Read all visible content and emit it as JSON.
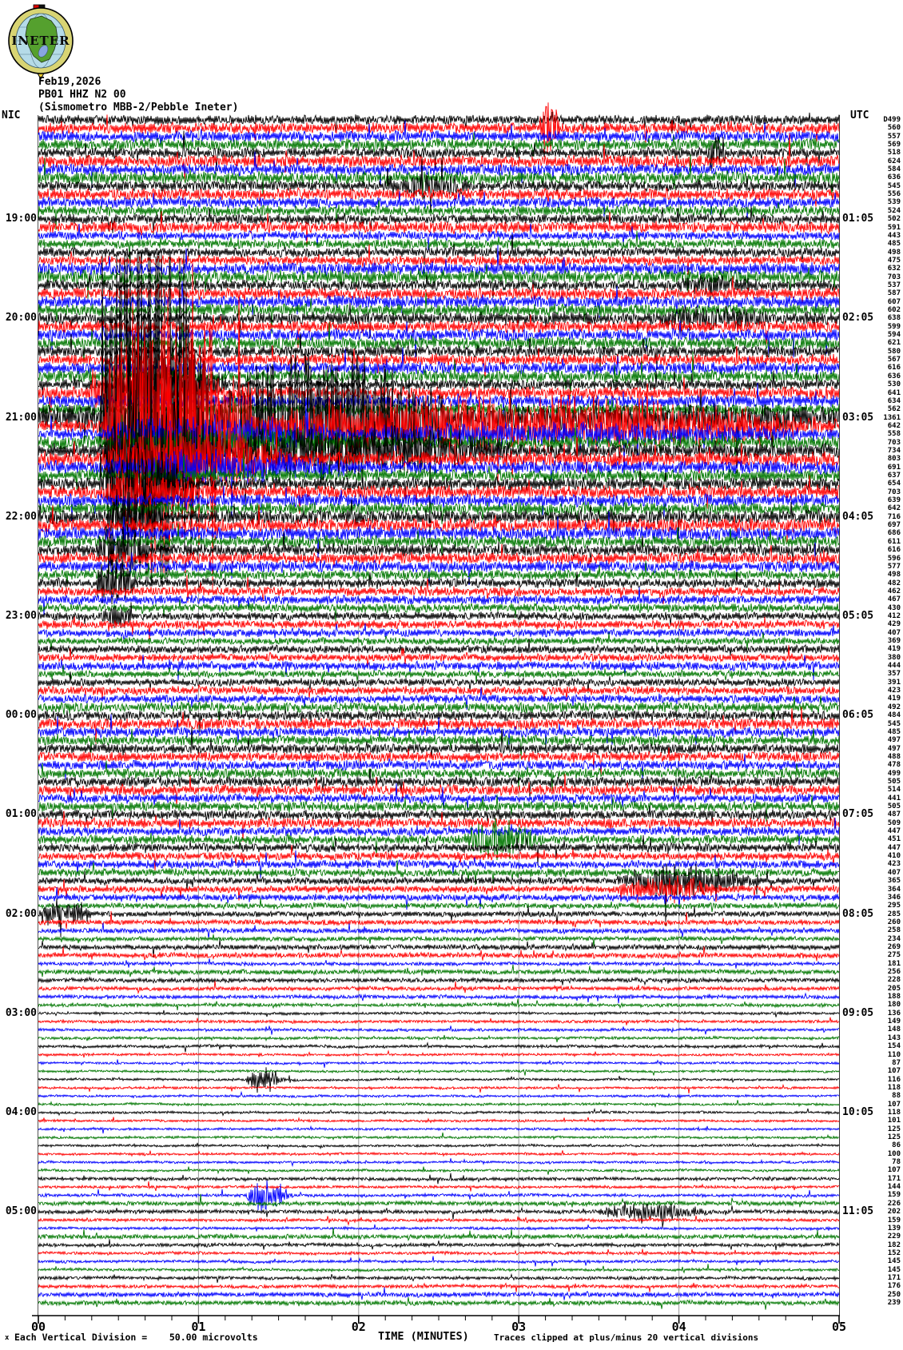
{
  "header": {
    "date": "Feb19,2026",
    "station": "PB01 HHZ N2 00",
    "instrument": "(Sismometro MBB-2/Pebble Ineter)",
    "left_timezone": "NIC",
    "right_timezone": "UTC",
    "logo_text": "INETER"
  },
  "left_time_labels": [
    {
      "label": "19:00",
      "row": 12
    },
    {
      "label": "20:00",
      "row": 24
    },
    {
      "label": "21:00",
      "row": 36
    },
    {
      "label": "22:00",
      "row": 48
    },
    {
      "label": "23:00",
      "row": 60
    },
    {
      "label": "00:00",
      "row": 72
    },
    {
      "label": "01:00",
      "row": 84
    },
    {
      "label": "02:00",
      "row": 96
    },
    {
      "label": "03:00",
      "row": 108
    },
    {
      "label": "04:00",
      "row": 120
    },
    {
      "label": "05:00",
      "row": 132
    }
  ],
  "right_time_labels": [
    {
      "label": "01:05",
      "row": 12
    },
    {
      "label": "02:05",
      "row": 24
    },
    {
      "label": "03:05",
      "row": 36
    },
    {
      "label": "04:05",
      "row": 48
    },
    {
      "label": "05:05",
      "row": 60
    },
    {
      "label": "06:05",
      "row": 72
    },
    {
      "label": "07:05",
      "row": 84
    },
    {
      "label": "08:05",
      "row": 96
    },
    {
      "label": "09:05",
      "row": 108
    },
    {
      "label": "10:05",
      "row": 120
    },
    {
      "label": "11:05",
      "row": 132
    }
  ],
  "x_axis": {
    "tick_labels": [
      "00",
      "01",
      "02",
      "03",
      "04",
      "05"
    ],
    "title": "TIME (MINUTES)"
  },
  "footer": {
    "scale_marker": "x",
    "scale_note": "Each Vertical Division =    50.00 microvolts",
    "clip_note": "Traces clipped at plus/minus 20 vertical divisions"
  },
  "colors": {
    "trace_cycle": [
      "#000000",
      "#ff0000",
      "#0000ff",
      "#007700"
    ],
    "grid": "#999999",
    "axis": "#000000",
    "logo_ring": "#d8d473",
    "logo_sea": "#b5dbe8",
    "logo_land": "#55a02e",
    "logo_lake": "#88a6e0",
    "logo_flag_red": "#dd0000",
    "logo_pointer": "#e8c830"
  },
  "chart_data": {
    "type": "line",
    "subtype": "helicorder-seismogram",
    "title": "PB01 HHZ N2 00 — Feb19,2026 (Sismometro MBB-2/Pebble Ineter)",
    "xlabel": "TIME (MINUTES)",
    "x_range_minutes": [
      0,
      5
    ],
    "minutes_per_line": 5,
    "lines": 144,
    "line_color_cycle": [
      "black",
      "red",
      "blue",
      "green"
    ],
    "clip_divisions": 20,
    "microvolts_per_division": 50.0,
    "per_line_amplitude_labels": [
      "D499",
      "560",
      "557",
      "569",
      "518",
      "624",
      "584",
      "636",
      "545",
      "556",
      "539",
      "524",
      "502",
      "591",
      "443",
      "485",
      "498",
      "475",
      "632",
      "703",
      "537",
      "587",
      "607",
      "602",
      "638",
      "599",
      "594",
      "621",
      "580",
      "567",
      "616",
      "636",
      "530",
      "641",
      "634",
      "562",
      "1361",
      "642",
      "558",
      "703",
      "734",
      "803",
      "691",
      "637",
      "654",
      "703",
      "639",
      "642",
      "716",
      "697",
      "686",
      "611",
      "616",
      "596",
      "577",
      "498",
      "482",
      "462",
      "467",
      "430",
      "412",
      "429",
      "407",
      "369",
      "419",
      "380",
      "444",
      "357",
      "391",
      "423",
      "419",
      "492",
      "484",
      "545",
      "485",
      "497",
      "497",
      "488",
      "478",
      "499",
      "505",
      "514",
      "441",
      "505",
      "487",
      "509",
      "447",
      "451",
      "447",
      "410",
      "423",
      "407",
      "365",
      "364",
      "346",
      "295",
      "285",
      "260",
      "258",
      "234",
      "269",
      "275",
      "181",
      "256",
      "228",
      "205",
      "188",
      "180",
      "136",
      "149",
      "148",
      "143",
      "154",
      "110",
      "87",
      "107",
      "116",
      "118",
      "88",
      "107",
      "118",
      "101",
      "125",
      "125",
      "86",
      "100",
      "78",
      "107",
      "171",
      "144",
      "159",
      "226",
      "202",
      "159",
      "139",
      "229",
      "182",
      "152",
      "145",
      "145",
      "171",
      "176",
      "250",
      "239"
    ],
    "events": [
      {
        "row": 1,
        "t0": 3.13,
        "t1": 3.26,
        "peak": 55
      },
      {
        "row": 4,
        "t0": 4.18,
        "t1": 4.3,
        "peak": 40
      },
      {
        "row": 8,
        "t0": 2.15,
        "t1": 2.75,
        "peak": 16
      },
      {
        "row": 20,
        "t0": 4.0,
        "t1": 4.5,
        "peak": 12
      },
      {
        "row": 24,
        "t0": 3.9,
        "t1": 4.6,
        "peak": 12
      },
      {
        "row": 32,
        "t0": 0.52,
        "t1": 1.2,
        "peak": 55
      },
      {
        "row": 33,
        "t0": 0.3,
        "t1": 0.9,
        "peak": 38
      },
      {
        "row": 36,
        "t0": 0.38,
        "t1": 1.1,
        "peak": 420
      },
      {
        "row": 36,
        "t0": 1.1,
        "t1": 2.6,
        "peak": 110
      },
      {
        "row": 37,
        "t0": 0.4,
        "t1": 1.4,
        "peak": 260
      },
      {
        "row": 37,
        "t0": 1.4,
        "t1": 5.0,
        "peak": 50
      },
      {
        "row": 38,
        "t0": 0.4,
        "t1": 2.0,
        "peak": 28
      },
      {
        "row": 38,
        "t0": 2.0,
        "t1": 5.0,
        "peak": 13
      },
      {
        "row": 39,
        "t0": 0.4,
        "t1": 2.2,
        "peak": 16
      },
      {
        "row": 40,
        "t0": 0.4,
        "t1": 1.2,
        "peak": 125
      },
      {
        "row": 40,
        "t0": 1.2,
        "t1": 3.0,
        "peak": 38
      },
      {
        "row": 41,
        "t0": 0.4,
        "t1": 1.6,
        "peak": 55
      },
      {
        "row": 42,
        "t0": 0.4,
        "t1": 2.0,
        "peak": 20
      },
      {
        "row": 44,
        "t0": 0.38,
        "t1": 0.95,
        "peak": 65
      },
      {
        "row": 45,
        "t0": 0.4,
        "t1": 1.0,
        "peak": 26
      },
      {
        "row": 48,
        "t0": 0.42,
        "t1": 0.8,
        "peak": 42
      },
      {
        "row": 52,
        "t0": 0.36,
        "t1": 0.7,
        "peak": 38
      },
      {
        "row": 56,
        "t0": 0.36,
        "t1": 0.62,
        "peak": 46
      },
      {
        "row": 60,
        "t0": 0.4,
        "t1": 0.6,
        "peak": 18
      },
      {
        "row": 87,
        "t0": 2.65,
        "t1": 3.15,
        "peak": 26
      },
      {
        "row": 92,
        "t0": 3.6,
        "t1": 4.55,
        "peak": 24
      },
      {
        "row": 93,
        "t0": 3.6,
        "t1": 4.3,
        "peak": 18
      },
      {
        "row": 96,
        "t0": 0.0,
        "t1": 0.35,
        "peak": 22
      },
      {
        "row": 116,
        "t0": 1.3,
        "t1": 1.55,
        "peak": 22
      },
      {
        "row": 130,
        "t0": 1.3,
        "t1": 1.6,
        "peak": 26
      },
      {
        "row": 132,
        "t0": 3.5,
        "t1": 4.2,
        "peak": 16
      }
    ]
  }
}
